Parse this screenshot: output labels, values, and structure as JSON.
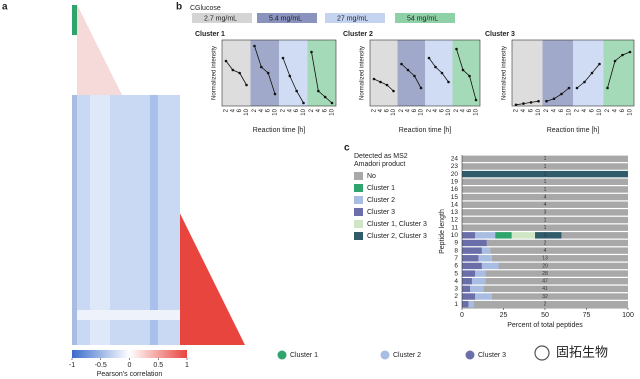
{
  "chart_data": [
    {
      "type": "heatmap",
      "panel": "a",
      "clim": [
        -1,
        1
      ],
      "colorbar_ticks": [
        -1,
        -0.5,
        0,
        0.5,
        1
      ],
      "colormap": [
        "#3a6ccc",
        "#ffffff",
        "#e8453f"
      ],
      "colorbar_label": "Pearson's correlation"
    },
    {
      "type": "line",
      "panel": "b",
      "legend_title": "CGlucose",
      "groups": [
        {
          "name": "2.7 mg/mL",
          "color": "#d4d4d4"
        },
        {
          "name": "5.4 mg/mL",
          "color": "#8a93bd"
        },
        {
          "name": "27 mg/mL",
          "color": "#c3d3f0"
        },
        {
          "name": "54 mg/mL",
          "color": "#8fd1a6"
        }
      ],
      "categories": [
        "2",
        "4",
        "6",
        "10"
      ],
      "ylim": [
        0,
        1.1
      ],
      "ylabel": "Normalized intensity",
      "xlabel": "Reaction time [h]",
      "panels": [
        {
          "title": "Cluster 1",
          "values": [
            [
              0.75,
              0.6,
              0.55,
              0.35
            ],
            [
              1.0,
              0.65,
              0.55,
              0.2
            ],
            [
              0.8,
              0.5,
              0.25,
              0.05
            ],
            [
              0.9,
              0.25,
              0.15,
              0.05
            ]
          ]
        },
        {
          "title": "Cluster 2",
          "values": [
            [
              0.45,
              0.4,
              0.35,
              0.25
            ],
            [
              0.7,
              0.6,
              0.5,
              0.3
            ],
            [
              0.8,
              0.65,
              0.55,
              0.4
            ],
            [
              0.95,
              0.6,
              0.5,
              0.1
            ]
          ]
        },
        {
          "title": "Cluster 3",
          "values": [
            [
              0.02,
              0.04,
              0.06,
              0.08
            ],
            [
              0.08,
              0.12,
              0.2,
              0.3
            ],
            [
              0.3,
              0.4,
              0.55,
              0.7
            ],
            [
              0.3,
              0.75,
              0.85,
              0.9
            ]
          ]
        }
      ]
    },
    {
      "type": "bar",
      "panel": "c",
      "orientation": "horizontal",
      "stacked": true,
      "legend_title": [
        "Detected as MS2",
        "Amadori product"
      ],
      "categories": [
        "24",
        "23",
        "20",
        "19",
        "16",
        "15",
        "14",
        "13",
        "12",
        "11",
        "10",
        "9",
        "8",
        "7",
        "6",
        "5",
        "4",
        "3",
        "2",
        "1"
      ],
      "row_counts": [
        "1",
        "1",
        "1",
        "1",
        "1",
        "4",
        "4",
        "3",
        "1",
        "1",
        "1",
        "2",
        "4",
        "13",
        "20",
        "28",
        "47",
        "41",
        "32",
        "2"
      ],
      "legend_order": [
        5,
        2,
        1,
        0,
        3,
        4
      ],
      "series": [
        {
          "name": "Cluster 3",
          "color": "#6b6fa9",
          "values": [
            0,
            0,
            0,
            0,
            0,
            0,
            0,
            0,
            0,
            0,
            8,
            15,
            12,
            10,
            12,
            8,
            6,
            5,
            8,
            4
          ]
        },
        {
          "name": "Cluster 2",
          "color": "#a9bde3",
          "values": [
            0,
            0,
            0,
            0,
            0,
            0,
            0,
            0,
            0,
            0,
            12,
            0,
            5,
            8,
            10,
            6,
            8,
            8,
            10,
            3
          ]
        },
        {
          "name": "Cluster 1",
          "color": "#2fa46d",
          "values": [
            0,
            0,
            0,
            0,
            0,
            0,
            0,
            0,
            0,
            0,
            10,
            0,
            0,
            0,
            0,
            0,
            0,
            0,
            0,
            0
          ]
        },
        {
          "name": "Cluster 1, Cluster 3",
          "color": "#d0e5c6",
          "values": [
            0,
            0,
            0,
            0,
            0,
            0,
            0,
            0,
            0,
            0,
            14,
            0,
            0,
            0,
            0,
            0,
            0,
            0,
            0,
            0
          ]
        },
        {
          "name": "Cluster 2, Cluster 3",
          "color": "#2f5b6b",
          "values": [
            0,
            0,
            100,
            0,
            0,
            0,
            0,
            0,
            0,
            0,
            16,
            0,
            0,
            0,
            0,
            0,
            0,
            0,
            0,
            0
          ]
        },
        {
          "name": "No",
          "color": "#a8a8a8",
          "values": [
            100,
            100,
            0,
            100,
            100,
            100,
            100,
            100,
            100,
            100,
            40,
            85,
            83,
            82,
            78,
            86,
            86,
            87,
            82,
            93
          ]
        }
      ],
      "xlim": [
        0,
        100
      ],
      "xticks": [
        0,
        25,
        50,
        75,
        100
      ],
      "xlabel": "Percent of total peptides",
      "ylabel": "Peptide length"
    }
  ],
  "cluster_legend": [
    {
      "name": "Cluster 1",
      "color": "#2fa46d"
    },
    {
      "name": "Cluster 2",
      "color": "#a9bde3"
    },
    {
      "name": "Cluster 3",
      "color": "#6b6fa9"
    }
  ],
  "watermark": "固拓生物"
}
